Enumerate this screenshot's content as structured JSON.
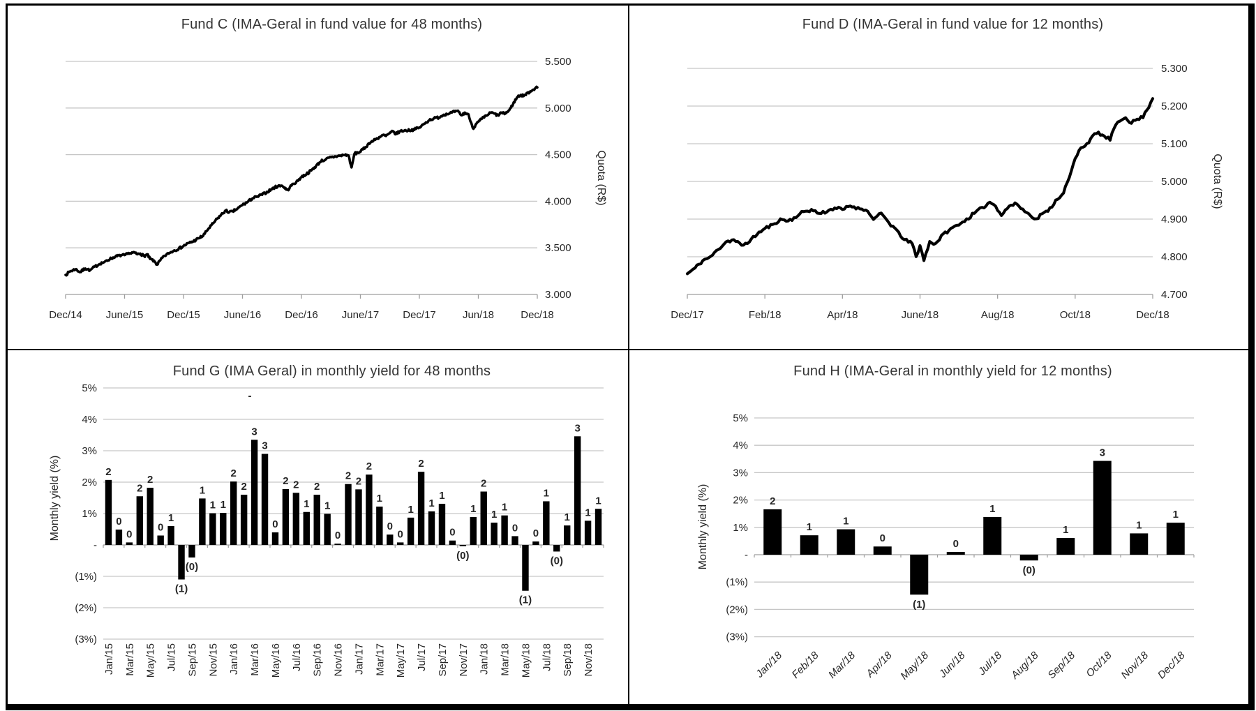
{
  "figure": {
    "background": "#ffffff",
    "frame_color": "#000000",
    "grid_color": "#c6c6c6",
    "axis_color": "#9e9e9e",
    "series_color": "#000000",
    "bar_color": "#000000"
  },
  "chart_data": [
    {
      "id": "fund-c",
      "type": "line",
      "title": "Fund C (IMA-Geral in fund value for 48 months)",
      "y_axis": {
        "title": "Quota (R$)",
        "side": "right",
        "min": 3.0,
        "max": 5.5,
        "tick_values": [
          5.5,
          5.0,
          4.5,
          4.0,
          3.5,
          3.0
        ],
        "tick_labels": [
          "5.500",
          "5.000",
          "4.500",
          "4.000",
          "3.500",
          "3.000"
        ]
      },
      "x_axis": {
        "span_months": 48,
        "tick_labels": [
          "Dec/14",
          "June/15",
          "Dec/15",
          "June/16",
          "Dec/16",
          "June/17",
          "Dec/17",
          "Jun/18",
          "Dec/18"
        ]
      },
      "series": [
        {
          "name": "Fund C quota",
          "color": "#000000",
          "points": [
            [
              0,
              3.21
            ],
            [
              0.5,
              3.25
            ],
            [
              1,
              3.27
            ],
            [
              1.5,
              3.24
            ],
            [
              2,
              3.28
            ],
            [
              2.5,
              3.26
            ],
            [
              3,
              3.3
            ],
            [
              3.5,
              3.33
            ],
            [
              4,
              3.35
            ],
            [
              4.5,
              3.38
            ],
            [
              5,
              3.4
            ],
            [
              5.5,
              3.42
            ],
            [
              6,
              3.42
            ],
            [
              6.5,
              3.44
            ],
            [
              7,
              3.45
            ],
            [
              7.3,
              3.43
            ],
            [
              7.6,
              3.44
            ],
            [
              8,
              3.41
            ],
            [
              8.3,
              3.43
            ],
            [
              8.6,
              3.38
            ],
            [
              9,
              3.36
            ],
            [
              9.3,
              3.32
            ],
            [
              9.6,
              3.36
            ],
            [
              10,
              3.41
            ],
            [
              10.5,
              3.44
            ],
            [
              11,
              3.47
            ],
            [
              11.5,
              3.49
            ],
            [
              12,
              3.52
            ],
            [
              12.5,
              3.55
            ],
            [
              13,
              3.57
            ],
            [
              13.5,
              3.6
            ],
            [
              14,
              3.63
            ],
            [
              14.5,
              3.7
            ],
            [
              15,
              3.76
            ],
            [
              15.5,
              3.82
            ],
            [
              16,
              3.87
            ],
            [
              16.3,
              3.9
            ],
            [
              16.6,
              3.88
            ],
            [
              17,
              3.89
            ],
            [
              17.5,
              3.92
            ],
            [
              18,
              3.96
            ],
            [
              18.5,
              3.99
            ],
            [
              19,
              4.03
            ],
            [
              19.5,
              4.05
            ],
            [
              20,
              4.07
            ],
            [
              20.5,
              4.1
            ],
            [
              21,
              4.13
            ],
            [
              21.3,
              4.15
            ],
            [
              21.6,
              4.16
            ],
            [
              22,
              4.17
            ],
            [
              22.3,
              4.14
            ],
            [
              22.6,
              4.12
            ],
            [
              23,
              4.17
            ],
            [
              23.5,
              4.21
            ],
            [
              24,
              4.26
            ],
            [
              24.5,
              4.29
            ],
            [
              25,
              4.33
            ],
            [
              25.5,
              4.38
            ],
            [
              26,
              4.43
            ],
            [
              26.5,
              4.45
            ],
            [
              27,
              4.47
            ],
            [
              27.5,
              4.48
            ],
            [
              28,
              4.49
            ],
            [
              28.5,
              4.5
            ],
            [
              28.8,
              4.49
            ],
            [
              29.1,
              4.36
            ],
            [
              29.4,
              4.51
            ],
            [
              30,
              4.53
            ],
            [
              30.5,
              4.58
            ],
            [
              31,
              4.63
            ],
            [
              31.5,
              4.66
            ],
            [
              32,
              4.69
            ],
            [
              32.3,
              4.71
            ],
            [
              32.6,
              4.7
            ],
            [
              33,
              4.73
            ],
            [
              33.3,
              4.75
            ],
            [
              33.6,
              4.72
            ],
            [
              34,
              4.75
            ],
            [
              34.5,
              4.76
            ],
            [
              35,
              4.76
            ],
            [
              35.5,
              4.77
            ],
            [
              36,
              4.79
            ],
            [
              36.5,
              4.83
            ],
            [
              37,
              4.87
            ],
            [
              37.5,
              4.89
            ],
            [
              38,
              4.9
            ],
            [
              38.5,
              4.93
            ],
            [
              39,
              4.94
            ],
            [
              39.3,
              4.95
            ],
            [
              39.6,
              4.96
            ],
            [
              40,
              4.96
            ],
            [
              40.3,
              4.92
            ],
            [
              40.6,
              4.95
            ],
            [
              41,
              4.93
            ],
            [
              41.2,
              4.86
            ],
            [
              41.5,
              4.78
            ],
            [
              41.8,
              4.83
            ],
            [
              42,
              4.85
            ],
            [
              42.3,
              4.88
            ],
            [
              42.6,
              4.9
            ],
            [
              43,
              4.93
            ],
            [
              43.3,
              4.95
            ],
            [
              43.6,
              4.94
            ],
            [
              44,
              4.92
            ],
            [
              44.3,
              4.95
            ],
            [
              44.6,
              4.94
            ],
            [
              45,
              4.96
            ],
            [
              45.3,
              5.0
            ],
            [
              45.6,
              5.06
            ],
            [
              46,
              5.12
            ],
            [
              46.3,
              5.14
            ],
            [
              46.6,
              5.13
            ],
            [
              47,
              5.16
            ],
            [
              47.3,
              5.18
            ],
            [
              47.6,
              5.2
            ],
            [
              48,
              5.22
            ]
          ]
        }
      ]
    },
    {
      "id": "fund-d",
      "type": "line",
      "title": "Fund D (IMA-Geral in fund value for 12 months)",
      "y_axis": {
        "title": "Quota (R$)",
        "side": "right",
        "min": 4.7,
        "max": 5.3,
        "tick_values": [
          5.3,
          5.2,
          5.1,
          5.0,
          4.9,
          4.8,
          4.7
        ],
        "tick_labels": [
          "5.300",
          "5.200",
          "5.100",
          "5.000",
          "4.900",
          "4.800",
          "4.700"
        ]
      },
      "x_axis": {
        "span_months": 12,
        "tick_labels": [
          "Dec/17",
          "Feb/18",
          "Apr/18",
          "June/18",
          "Aug/18",
          "Oct/18",
          "Dec/18"
        ]
      },
      "series": [
        {
          "name": "Fund D quota",
          "color": "#000000",
          "points": [
            [
              0,
              4.755
            ],
            [
              0.2,
              4.77
            ],
            [
              0.4,
              4.79
            ],
            [
              0.6,
              4.8
            ],
            [
              0.8,
              4.82
            ],
            [
              1,
              4.84
            ],
            [
              1.2,
              4.845
            ],
            [
              1.4,
              4.83
            ],
            [
              1.6,
              4.84
            ],
            [
              1.8,
              4.86
            ],
            [
              2,
              4.875
            ],
            [
              2.2,
              4.885
            ],
            [
              2.4,
              4.9
            ],
            [
              2.6,
              4.895
            ],
            [
              2.8,
              4.905
            ],
            [
              3,
              4.92
            ],
            [
              3.2,
              4.925
            ],
            [
              3.4,
              4.915
            ],
            [
              3.6,
              4.92
            ],
            [
              3.8,
              4.93
            ],
            [
              4,
              4.925
            ],
            [
              4.2,
              4.935
            ],
            [
              4.4,
              4.93
            ],
            [
              4.6,
              4.925
            ],
            [
              4.8,
              4.9
            ],
            [
              5,
              4.915
            ],
            [
              5.2,
              4.89
            ],
            [
              5.4,
              4.87
            ],
            [
              5.6,
              4.845
            ],
            [
              5.8,
              4.835
            ],
            [
              5.9,
              4.8
            ],
            [
              6,
              4.83
            ],
            [
              6.1,
              4.79
            ],
            [
              6.25,
              4.84
            ],
            [
              6.4,
              4.835
            ],
            [
              6.6,
              4.86
            ],
            [
              6.8,
              4.875
            ],
            [
              7,
              4.885
            ],
            [
              7.2,
              4.9
            ],
            [
              7.4,
              4.915
            ],
            [
              7.6,
              4.93
            ],
            [
              7.8,
              4.945
            ],
            [
              7.95,
              4.935
            ],
            [
              8.1,
              4.91
            ],
            [
              8.3,
              4.935
            ],
            [
              8.5,
              4.94
            ],
            [
              8.7,
              4.92
            ],
            [
              8.85,
              4.91
            ],
            [
              9,
              4.9
            ],
            [
              9.15,
              4.915
            ],
            [
              9.3,
              4.92
            ],
            [
              9.5,
              4.95
            ],
            [
              9.7,
              4.97
            ],
            [
              9.85,
              5.01
            ],
            [
              10,
              5.06
            ],
            [
              10.15,
              5.09
            ],
            [
              10.3,
              5.1
            ],
            [
              10.45,
              5.12
            ],
            [
              10.6,
              5.13
            ],
            [
              10.75,
              5.12
            ],
            [
              10.9,
              5.11
            ],
            [
              11,
              5.14
            ],
            [
              11.15,
              5.16
            ],
            [
              11.3,
              5.17
            ],
            [
              11.45,
              5.155
            ],
            [
              11.6,
              5.165
            ],
            [
              11.75,
              5.17
            ],
            [
              11.85,
              5.19
            ],
            [
              11.95,
              5.21
            ],
            [
              12,
              5.22
            ]
          ]
        }
      ]
    },
    {
      "id": "fund-g",
      "type": "bar",
      "title": "Fund G (IMA Geral) in monthly yield for 48 months",
      "y_axis": {
        "title": "Monthly yield (%)",
        "side": "left",
        "min": -3,
        "max": 5,
        "tick_values": [
          5,
          4,
          3,
          2,
          1,
          0,
          -1,
          -2,
          -3
        ],
        "tick_labels": [
          "5%",
          "4%",
          "3%",
          "2%",
          "1%",
          "-",
          "(1%)",
          "(2%)",
          "(3%)"
        ]
      },
      "x_label_every": 2,
      "stray_mark": "-",
      "categories": [
        "Jan/15",
        "Feb/15",
        "Mar/15",
        "Apr/15",
        "May/15",
        "Jun/15",
        "Jul/15",
        "Aug/15",
        "Sep/15",
        "Oct/15",
        "Nov/15",
        "Dec/15",
        "Jan/16",
        "Feb/16",
        "Mar/16",
        "Apr/16",
        "May/16",
        "Jun/16",
        "Jul/16",
        "Aug/16",
        "Sep/16",
        "Oct/16",
        "Nov/16",
        "Dec/16",
        "Jan/17",
        "Feb/17",
        "Mar/17",
        "Apr/17",
        "May/17",
        "Jun/17",
        "Jul/17",
        "Aug/17",
        "Sep/17",
        "Oct/17",
        "Nov/17",
        "Dec/17",
        "Jan/18",
        "Feb/18",
        "Mar/18",
        "Apr/18",
        "May/18",
        "Jun/18",
        "Jul/18",
        "Aug/18",
        "Sep/18",
        "Oct/18",
        "Nov/18",
        "Dec/18"
      ],
      "values": [
        2.07,
        0.49,
        0.08,
        1.55,
        1.82,
        0.3,
        0.6,
        -1.1,
        -0.4,
        1.48,
        1.01,
        1.02,
        2.02,
        1.6,
        3.35,
        2.9,
        0.4,
        1.78,
        1.66,
        1.05,
        1.6,
        0.99,
        0.04,
        1.94,
        1.77,
        2.24,
        1.22,
        0.33,
        0.08,
        0.87,
        2.33,
        1.07,
        1.31,
        0.14,
        -0.04,
        0.89,
        1.7,
        0.71,
        0.94,
        0.28,
        -1.46,
        0.11,
        1.39,
        -0.21,
        0.62,
        3.46,
        0.77,
        1.15
      ],
      "value_labels": [
        "2",
        "0",
        "0",
        "2",
        "2",
        "0",
        "1",
        "(1)",
        "(0)",
        "1",
        "1",
        "1",
        "2",
        "2",
        "3",
        "3",
        "0",
        "2",
        "2",
        "1",
        "2",
        "1",
        "0",
        "2",
        "2",
        "2",
        "1",
        "0",
        "0",
        "1",
        "2",
        "1",
        "1",
        "0",
        "(0)",
        "1",
        "2",
        "1",
        "1",
        "0",
        "(1)",
        "0",
        "1",
        "(0)",
        "1",
        "3",
        "1",
        "1"
      ]
    },
    {
      "id": "fund-h",
      "type": "bar",
      "title": "Fund H (IMA-Geral in monthly yield for 12 months)",
      "y_axis": {
        "title": "Monthly yield (%)",
        "side": "left",
        "min": -3,
        "max": 5,
        "tick_values": [
          5,
          4,
          3,
          2,
          1,
          0,
          -1,
          -2,
          -3
        ],
        "tick_labels": [
          "5%",
          "4%",
          "3%",
          "2%",
          "1%",
          "-",
          "(1%)",
          "(2%)",
          "(3%)"
        ]
      },
      "x_label_every": 1,
      "categories": [
        "Jan/18",
        "Feb/18",
        "Mar/18",
        "Apr/18",
        "May/18",
        "Jun/18",
        "Jul/18",
        "Aug/18",
        "Sep/18",
        "Oct/18",
        "Nov/18",
        "Dec/18"
      ],
      "values": [
        1.66,
        0.71,
        0.93,
        0.3,
        -1.46,
        0.1,
        1.38,
        -0.21,
        0.61,
        3.43,
        0.78,
        1.17
      ],
      "value_labels": [
        "2",
        "1",
        "1",
        "0",
        "(1)",
        "0",
        "1",
        "(0)",
        "1",
        "3",
        "1",
        "1"
      ]
    }
  ]
}
